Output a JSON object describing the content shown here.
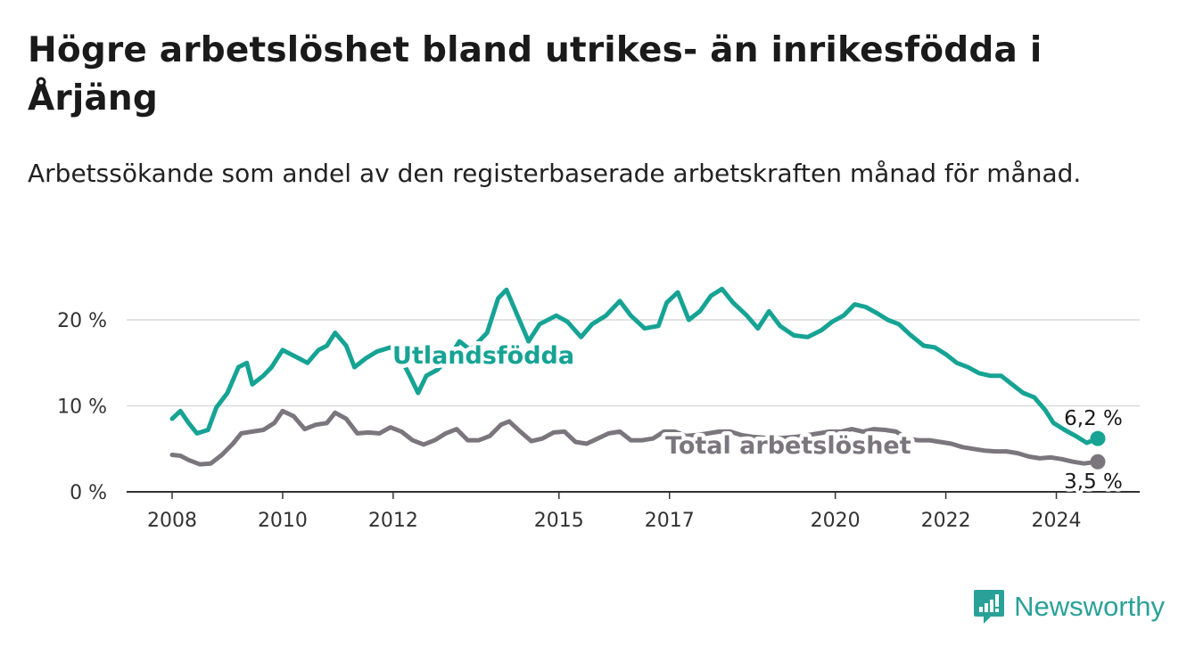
{
  "header": {
    "title": "Högre arbetslöshet bland utrikes- än inrikesfödda i Årjäng",
    "subtitle": "Arbetssökande som andel av den registerbaserade arbetskraften månad för månad."
  },
  "brand": {
    "name": "Newsworthy",
    "color": "#2aa198"
  },
  "chart_data": {
    "type": "line",
    "title": "Högre arbetslöshet bland utrikes- än inrikesfödda i Årjäng",
    "subtitle": "Arbetssökande som andel av den registerbaserade arbetskraften månad för månad.",
    "xlabel": "",
    "ylabel": "",
    "xlim": [
      2008,
      2025.3
    ],
    "ylim": [
      0,
      25
    ],
    "x_ticks": [
      {
        "value": 2008,
        "label": "2008"
      },
      {
        "value": 2010,
        "label": "2010"
      },
      {
        "value": 2012,
        "label": "2012"
      },
      {
        "value": 2015,
        "label": "2015"
      },
      {
        "value": 2017,
        "label": "2017"
      },
      {
        "value": 2020,
        "label": "2020"
      },
      {
        "value": 2022,
        "label": "2022"
      },
      {
        "value": 2024,
        "label": "2024"
      }
    ],
    "y_ticks": [
      {
        "value": 0,
        "label": "0 %"
      },
      {
        "value": 10,
        "label": "10 %"
      },
      {
        "value": 20,
        "label": "20 %"
      }
    ],
    "grid": true,
    "series": [
      {
        "name": "Utlandsfödda",
        "color": "#16a394",
        "end_label": "6,2 %",
        "points": [
          [
            2008.0,
            8.5
          ],
          [
            2008.15,
            9.4
          ],
          [
            2008.3,
            8.0
          ],
          [
            2008.45,
            6.8
          ],
          [
            2008.65,
            7.2
          ],
          [
            2008.8,
            9.8
          ],
          [
            2009.0,
            11.5
          ],
          [
            2009.2,
            14.5
          ],
          [
            2009.35,
            15.0
          ],
          [
            2009.45,
            12.5
          ],
          [
            2009.65,
            13.5
          ],
          [
            2009.8,
            14.5
          ],
          [
            2010.0,
            16.5
          ],
          [
            2010.15,
            16.0
          ],
          [
            2010.3,
            15.5
          ],
          [
            2010.45,
            15.0
          ],
          [
            2010.65,
            16.5
          ],
          [
            2010.8,
            17.0
          ],
          [
            2010.95,
            18.5
          ],
          [
            2011.15,
            17.0
          ],
          [
            2011.3,
            14.5
          ],
          [
            2011.5,
            15.5
          ],
          [
            2011.7,
            16.3
          ],
          [
            2011.95,
            16.8
          ],
          [
            2012.1,
            16.0
          ],
          [
            2012.3,
            13.5
          ],
          [
            2012.45,
            11.5
          ],
          [
            2012.6,
            13.5
          ],
          [
            2012.8,
            14.2
          ],
          [
            2013.0,
            15.5
          ],
          [
            2013.2,
            17.5
          ],
          [
            2013.4,
            16.5
          ],
          [
            2013.7,
            18.5
          ],
          [
            2013.9,
            22.5
          ],
          [
            2014.05,
            23.5
          ],
          [
            2014.25,
            20.5
          ],
          [
            2014.45,
            17.5
          ],
          [
            2014.65,
            19.5
          ],
          [
            2014.95,
            20.5
          ],
          [
            2015.15,
            19.8
          ],
          [
            2015.4,
            18.0
          ],
          [
            2015.6,
            19.5
          ],
          [
            2015.85,
            20.5
          ],
          [
            2016.1,
            22.2
          ],
          [
            2016.3,
            20.5
          ],
          [
            2016.55,
            19.0
          ],
          [
            2016.8,
            19.3
          ],
          [
            2016.95,
            22.0
          ],
          [
            2017.15,
            23.2
          ],
          [
            2017.35,
            20.0
          ],
          [
            2017.55,
            21.0
          ],
          [
            2017.75,
            22.8
          ],
          [
            2017.95,
            23.6
          ],
          [
            2018.15,
            22.0
          ],
          [
            2018.4,
            20.5
          ],
          [
            2018.6,
            19.0
          ],
          [
            2018.8,
            21.0
          ],
          [
            2019.0,
            19.3
          ],
          [
            2019.25,
            18.2
          ],
          [
            2019.5,
            18.0
          ],
          [
            2019.75,
            18.8
          ],
          [
            2019.95,
            19.8
          ],
          [
            2020.15,
            20.5
          ],
          [
            2020.35,
            21.8
          ],
          [
            2020.55,
            21.5
          ],
          [
            2020.75,
            20.8
          ],
          [
            2020.95,
            20.0
          ],
          [
            2021.15,
            19.5
          ],
          [
            2021.35,
            18.3
          ],
          [
            2021.6,
            17.0
          ],
          [
            2021.8,
            16.8
          ],
          [
            2022.0,
            16.0
          ],
          [
            2022.2,
            15.0
          ],
          [
            2022.4,
            14.5
          ],
          [
            2022.6,
            13.8
          ],
          [
            2022.8,
            13.5
          ],
          [
            2023.0,
            13.5
          ],
          [
            2023.2,
            12.5
          ],
          [
            2023.4,
            11.5
          ],
          [
            2023.6,
            11.0
          ],
          [
            2023.8,
            9.5
          ],
          [
            2023.95,
            8.0
          ],
          [
            2024.15,
            7.2
          ],
          [
            2024.35,
            6.5
          ],
          [
            2024.55,
            5.7
          ],
          [
            2024.75,
            6.2
          ]
        ]
      },
      {
        "name": "Total arbetslöshet",
        "color": "#7b767d",
        "end_label": "3,5 %",
        "points": [
          [
            2008.0,
            4.3
          ],
          [
            2008.15,
            4.2
          ],
          [
            2008.3,
            3.7
          ],
          [
            2008.5,
            3.2
          ],
          [
            2008.7,
            3.3
          ],
          [
            2008.9,
            4.3
          ],
          [
            2009.1,
            5.6
          ],
          [
            2009.25,
            6.8
          ],
          [
            2009.45,
            7.0
          ],
          [
            2009.65,
            7.2
          ],
          [
            2009.85,
            8.0
          ],
          [
            2010.0,
            9.4
          ],
          [
            2010.2,
            8.8
          ],
          [
            2010.4,
            7.3
          ],
          [
            2010.6,
            7.8
          ],
          [
            2010.8,
            8.0
          ],
          [
            2010.95,
            9.2
          ],
          [
            2011.15,
            8.5
          ],
          [
            2011.35,
            6.8
          ],
          [
            2011.55,
            6.9
          ],
          [
            2011.75,
            6.8
          ],
          [
            2011.95,
            7.5
          ],
          [
            2012.15,
            7.0
          ],
          [
            2012.35,
            6.0
          ],
          [
            2012.55,
            5.5
          ],
          [
            2012.75,
            6.0
          ],
          [
            2012.95,
            6.8
          ],
          [
            2013.15,
            7.3
          ],
          [
            2013.35,
            6.0
          ],
          [
            2013.55,
            6.0
          ],
          [
            2013.75,
            6.5
          ],
          [
            2013.95,
            7.8
          ],
          [
            2014.1,
            8.2
          ],
          [
            2014.3,
            7.0
          ],
          [
            2014.5,
            5.9
          ],
          [
            2014.7,
            6.2
          ],
          [
            2014.9,
            6.9
          ],
          [
            2015.1,
            7.0
          ],
          [
            2015.3,
            5.8
          ],
          [
            2015.5,
            5.6
          ],
          [
            2015.7,
            6.2
          ],
          [
            2015.9,
            6.8
          ],
          [
            2016.1,
            7.0
          ],
          [
            2016.3,
            6.0
          ],
          [
            2016.5,
            6.0
          ],
          [
            2016.7,
            6.2
          ],
          [
            2016.9,
            7.0
          ],
          [
            2017.1,
            7.0
          ],
          [
            2017.3,
            6.5
          ],
          [
            2017.5,
            6.6
          ],
          [
            2017.7,
            6.8
          ],
          [
            2017.9,
            7.0
          ],
          [
            2018.1,
            7.0
          ],
          [
            2018.3,
            6.6
          ],
          [
            2018.5,
            6.4
          ],
          [
            2018.7,
            6.3
          ],
          [
            2018.9,
            6.2
          ],
          [
            2019.1,
            6.3
          ],
          [
            2019.3,
            6.4
          ],
          [
            2019.5,
            6.6
          ],
          [
            2019.7,
            6.8
          ],
          [
            2019.9,
            7.0
          ],
          [
            2020.1,
            7.0
          ],
          [
            2020.3,
            7.3
          ],
          [
            2020.5,
            7.0
          ],
          [
            2020.7,
            7.3
          ],
          [
            2020.9,
            7.2
          ],
          [
            2021.1,
            7.0
          ],
          [
            2021.3,
            6.2
          ],
          [
            2021.5,
            6.0
          ],
          [
            2021.7,
            6.0
          ],
          [
            2021.9,
            5.8
          ],
          [
            2022.1,
            5.6
          ],
          [
            2022.3,
            5.2
          ],
          [
            2022.5,
            5.0
          ],
          [
            2022.7,
            4.8
          ],
          [
            2022.9,
            4.7
          ],
          [
            2023.1,
            4.7
          ],
          [
            2023.3,
            4.5
          ],
          [
            2023.5,
            4.1
          ],
          [
            2023.7,
            3.9
          ],
          [
            2023.9,
            4.0
          ],
          [
            2024.1,
            3.8
          ],
          [
            2024.3,
            3.5
          ],
          [
            2024.5,
            3.3
          ],
          [
            2024.75,
            3.5
          ]
        ]
      }
    ],
    "annotations": [
      {
        "text": "Utlandsfödda",
        "series": "Utlandsfödda"
      },
      {
        "text": "Total arbetslöshet",
        "series": "Total arbetslöshet"
      }
    ]
  }
}
